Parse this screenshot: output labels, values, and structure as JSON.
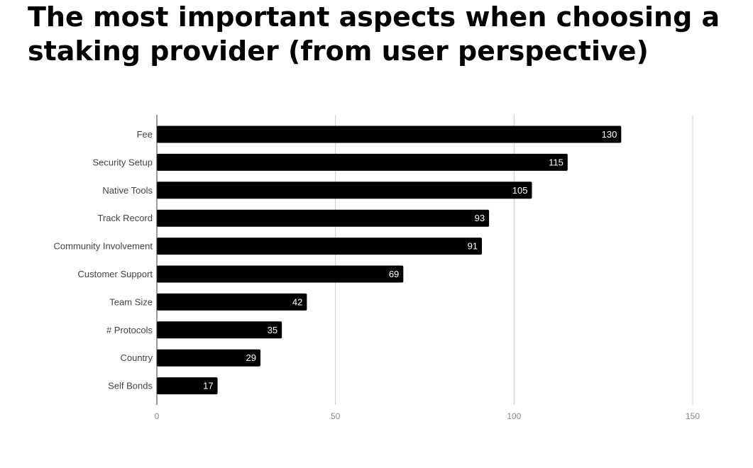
{
  "title": "The most important aspects when choosing a staking provider (from user perspective)",
  "chart_data": {
    "type": "bar",
    "orientation": "horizontal",
    "categories": [
      "Fee",
      "Security Setup",
      "Native Tools",
      "Track Record",
      "Community Involvement",
      "Customer Support",
      "Team Size",
      "# Protocols",
      "Country",
      "Self Bonds"
    ],
    "values": [
      130,
      115,
      105,
      93,
      91,
      69,
      42,
      35,
      29,
      17
    ],
    "xlim": [
      0,
      150
    ],
    "xticks": [
      0,
      50,
      100,
      150
    ],
    "grid": true,
    "bar_color": "#000000",
    "data_labels": true,
    "title": "The most important aspects when choosing a staking provider (from user perspective)"
  }
}
